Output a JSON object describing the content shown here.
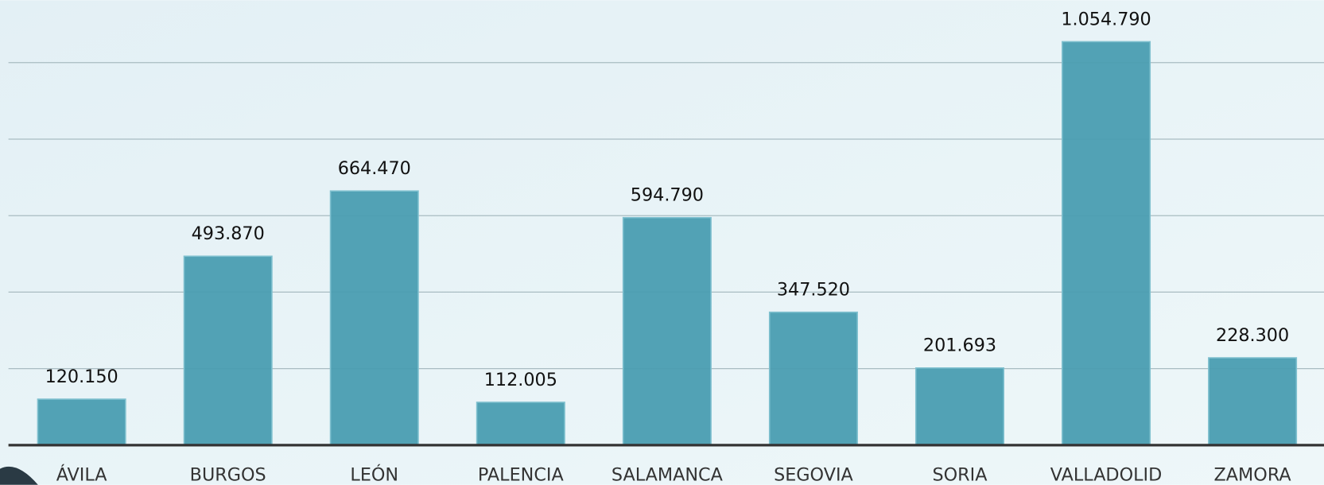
{
  "chart_data": {
    "type": "bar",
    "categories": [
      "ÁVILA",
      "BURGOS",
      "LEÓN",
      "PALENCIA",
      "SALAMANCA",
      "SEGOVIA",
      "SORIA",
      "VALLADOLID",
      "ZAMORA"
    ],
    "values": [
      120150,
      493870,
      664470,
      112005,
      594790,
      347520,
      201693,
      1054790,
      228300
    ],
    "value_labels": [
      "120.150",
      "493.870",
      "664.470",
      "112.005",
      "594.790",
      "347.520",
      "201.693",
      "1.054.790",
      "228.300"
    ],
    "color": "#4a9db1",
    "ylim": [
      0,
      1150000
    ],
    "yticks": [
      0,
      200000,
      400000,
      600000,
      800000,
      1000000
    ],
    "grid": true
  }
}
